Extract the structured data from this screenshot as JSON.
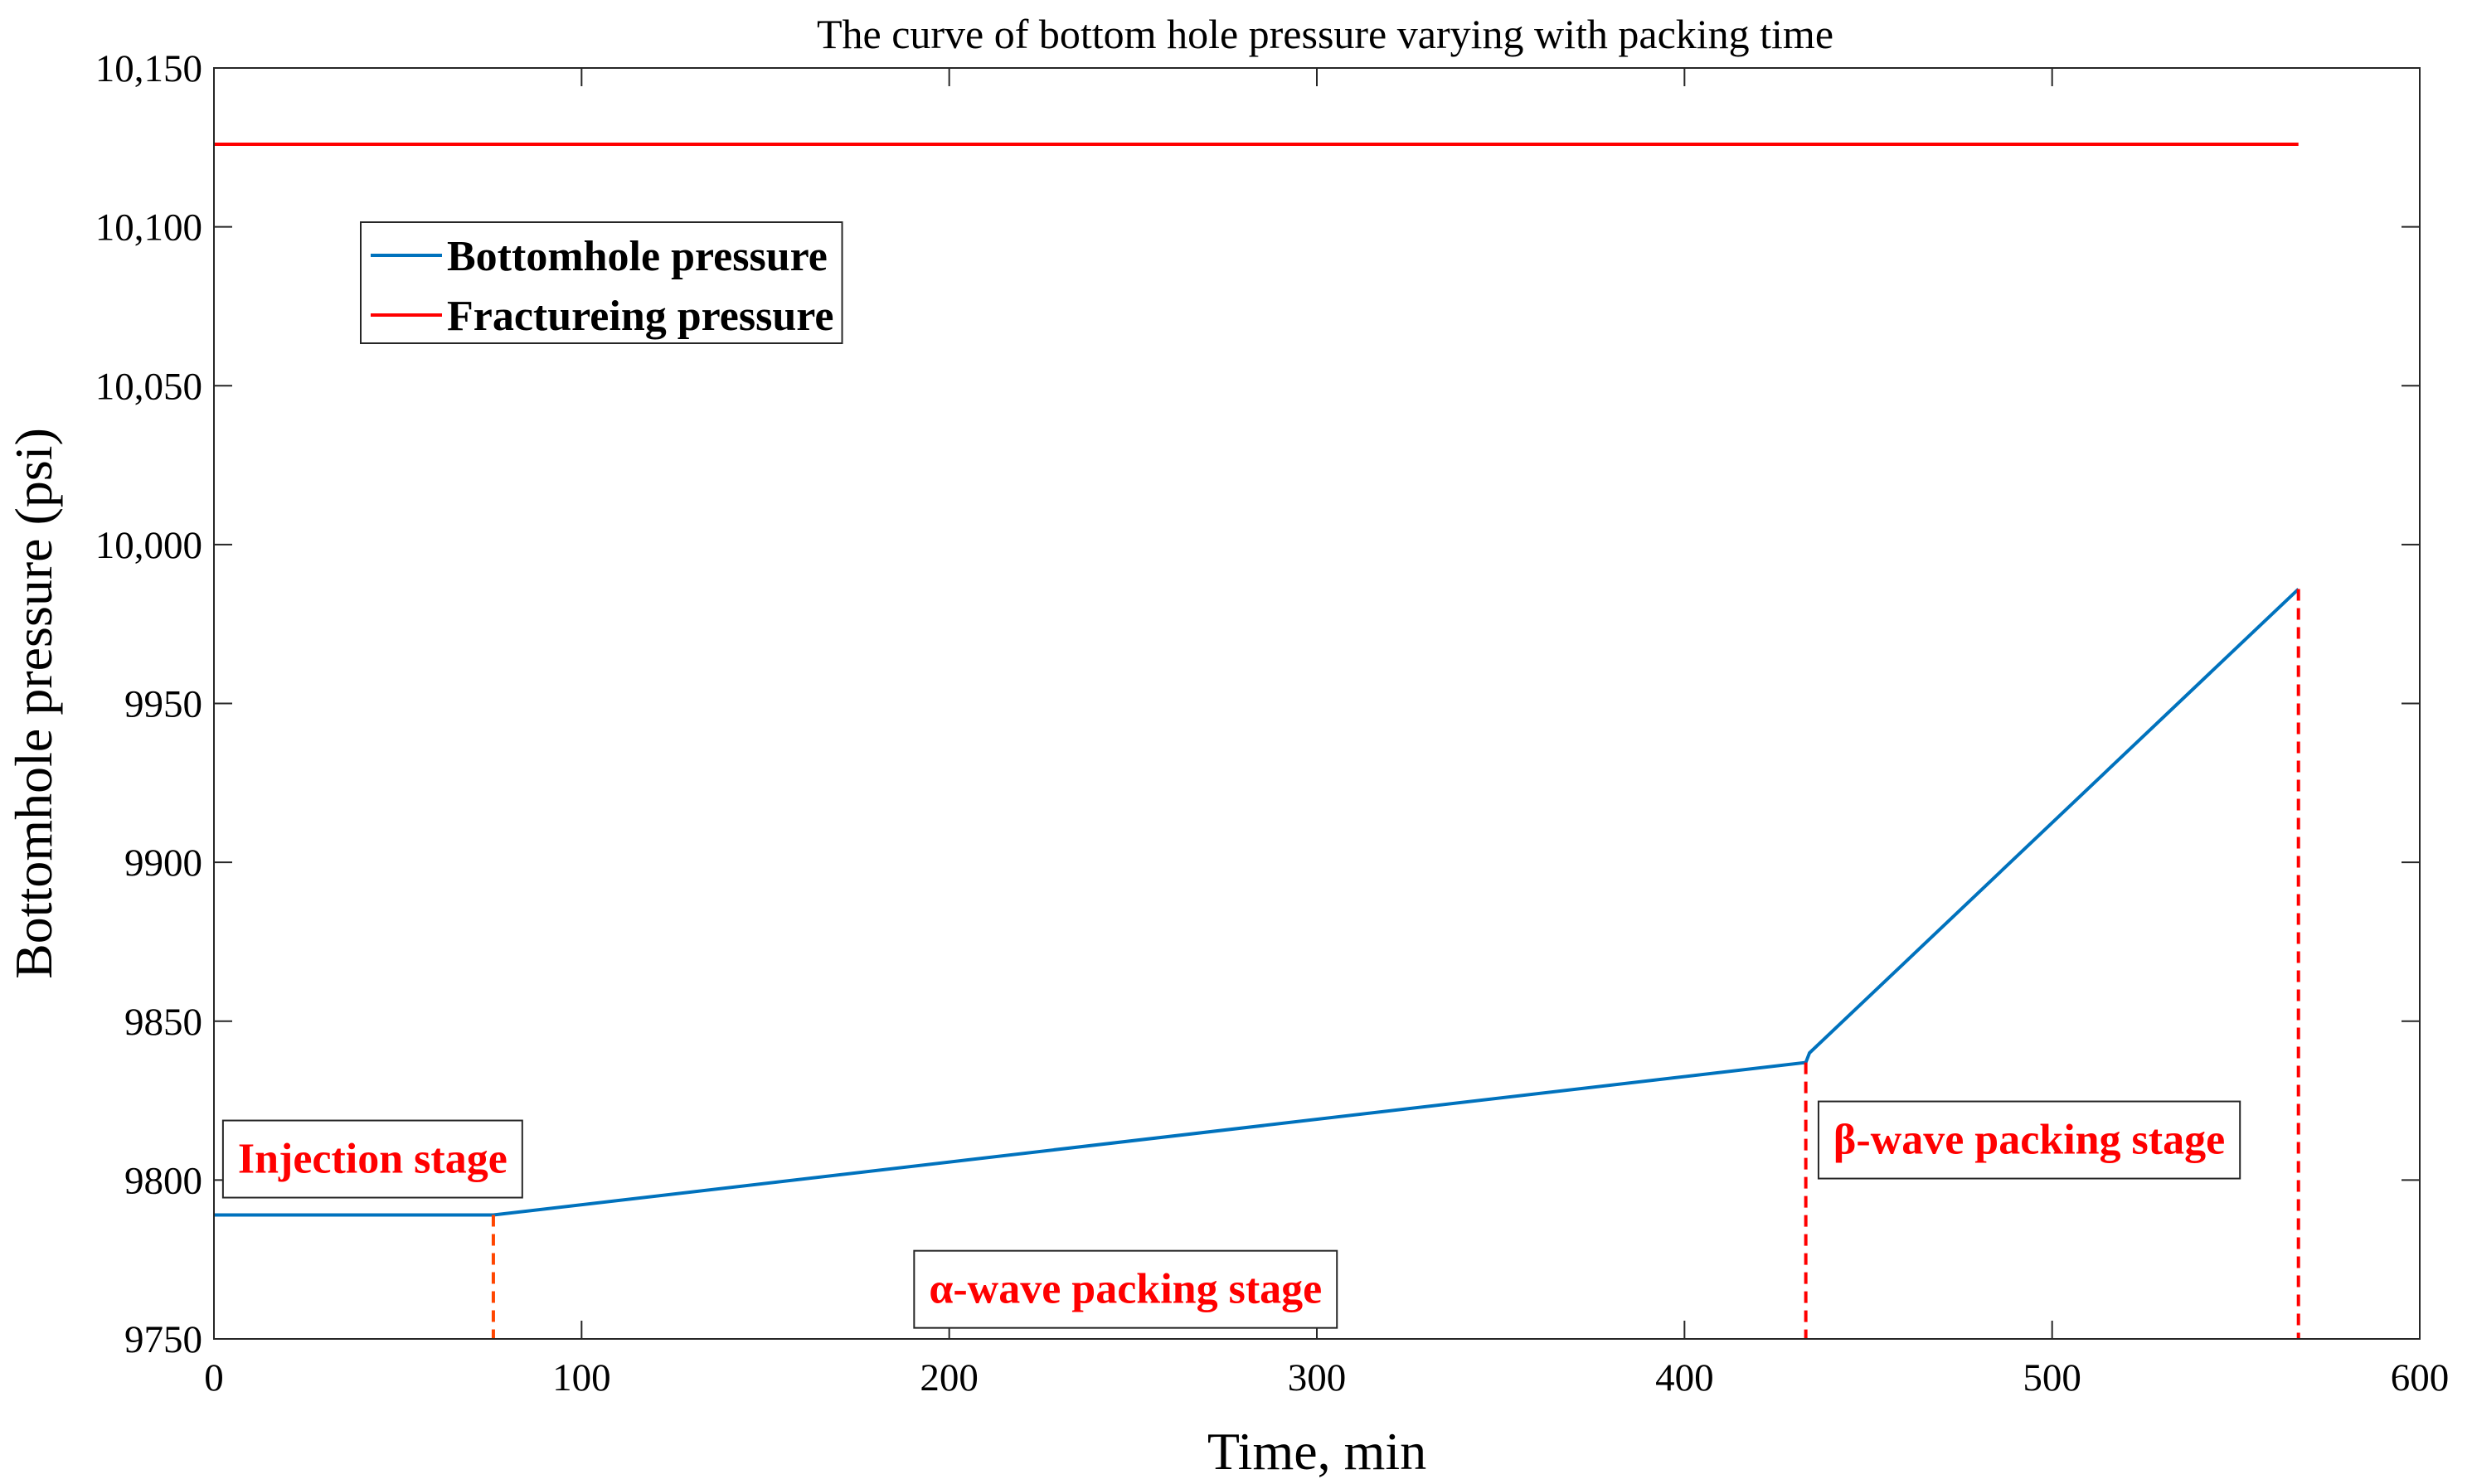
{
  "chart_data": {
    "type": "line",
    "title": "The curve of bottom hole pressure varying with packing time",
    "xlabel": "Time, min",
    "ylabel": "Bottomhole pressure (psi)",
    "xlim": [
      0,
      600
    ],
    "ylim": [
      9750,
      10150
    ],
    "x_ticks": [
      0,
      100,
      200,
      300,
      400,
      500,
      600
    ],
    "x_tick_labels": [
      "0",
      "100",
      "200",
      "300",
      "400",
      "500",
      "600"
    ],
    "y_ticks": [
      9750,
      9800,
      9850,
      9900,
      9950,
      10000,
      10050,
      10100,
      10150
    ],
    "y_tick_labels": [
      "9750",
      "9800",
      "9850",
      "9900",
      "9950",
      "10,000",
      "10,050",
      "10,100",
      "10,150"
    ],
    "grid": false,
    "legend_position": "top-left",
    "series": [
      {
        "name": "Bottomhole pressure",
        "color": "#0072BD",
        "x": [
          0,
          76,
          433,
          434,
          567
        ],
        "y": [
          9789,
          9789,
          9837,
          9840,
          9986
        ]
      },
      {
        "name": "Fractureing pressure",
        "color": "#FF0000",
        "x": [
          0,
          567
        ],
        "y": [
          10126,
          10126
        ]
      }
    ],
    "stage_dividers": [
      {
        "x": 76,
        "y_top": 9789,
        "color": "#FF4500"
      },
      {
        "x": 433,
        "y_top": 9837,
        "color": "#FF0000"
      },
      {
        "x": 567,
        "y_top": 9986,
        "color": "#FF0000"
      }
    ],
    "annotations": [
      {
        "text": "Injection stage",
        "color": "#FF0000",
        "x": 2,
        "y": 9807
      },
      {
        "text": "α-wave packing stage",
        "color": "#FF0000",
        "x": 190,
        "y": 9766
      },
      {
        "text": "β-wave packing stage",
        "color": "#FF0000",
        "x": 436,
        "y": 9813
      }
    ]
  }
}
